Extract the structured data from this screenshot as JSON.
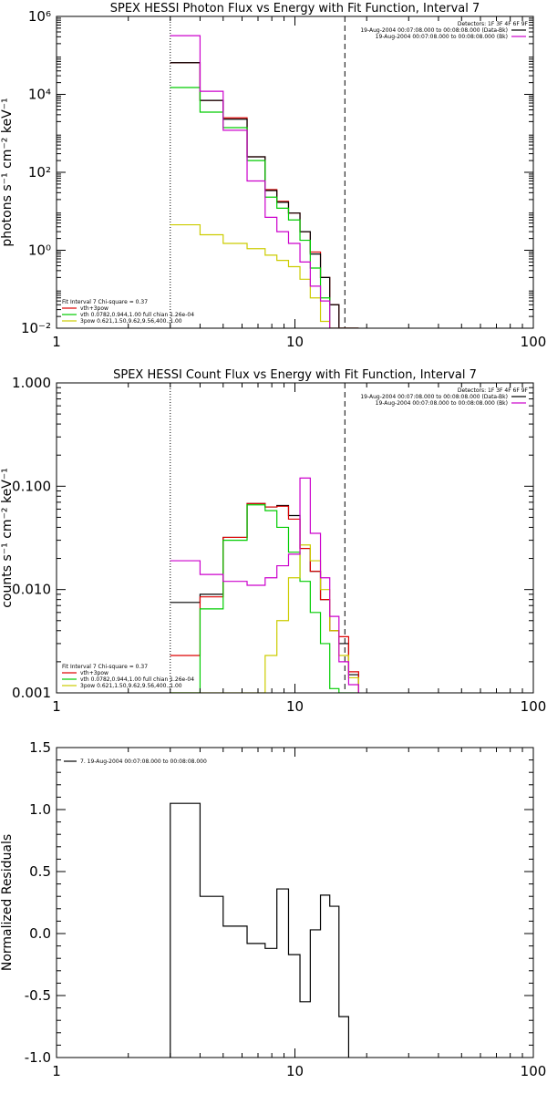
{
  "chart_data": [
    {
      "type": "line",
      "step": true,
      "title": "SPEX HESSI Photon Flux vs Energy with Fit Function, Interval 7",
      "ylabel": "photons s⁻¹ cm⁻² keV⁻¹",
      "xlabel": "",
      "xscale": "log",
      "yscale": "log",
      "xlim": [
        1,
        100
      ],
      "ylim": [
        0.01,
        1000000
      ],
      "x_ticks": [
        {
          "value": 1,
          "label": "1"
        },
        {
          "value": 10,
          "label": "10"
        },
        {
          "value": 100,
          "label": "100"
        }
      ],
      "y_ticks": [
        {
          "value": 0.01,
          "label": "10⁻²"
        },
        {
          "value": 1,
          "label": "10⁰"
        },
        {
          "value": 100,
          "label": "10²"
        },
        {
          "value": 10000,
          "label": "10⁴"
        },
        {
          "value": 1000000,
          "label": "10⁶"
        }
      ],
      "vlines": [
        {
          "x": 3.0,
          "style": "dotted"
        },
        {
          "x": 16.2,
          "style": "dashed"
        }
      ],
      "legend_top": [
        {
          "text": "Detectors: 1F 3F 4F 6F 9F",
          "color": ""
        },
        {
          "text": "19-Aug-2004 00:07:08.000 to 00:08:08.000 (Data-Bk)",
          "color": "#000000"
        },
        {
          "text": "19-Aug-2004 00:07:08.000 to 00:08:08.000 (Bk)",
          "color": "#cc00cc"
        }
      ],
      "legend_bottom": [
        {
          "text": "Fit Interval  7   Chi-square = 0.37",
          "color": ""
        },
        {
          "text": "vth+3pow",
          "color": "#dd0000"
        },
        {
          "text": "vth 0.0782,0.944,1.00  full chian 1.26e-04",
          "color": "#00cc00"
        },
        {
          "text": "3pow 0.621,1.50,9.62,9.56,400.,1.00",
          "color": "#cccc00"
        }
      ],
      "bin_edges": [
        3.0,
        4.0,
        5.0,
        6.3,
        7.5,
        8.4,
        9.4,
        10.5,
        11.6,
        12.8,
        14.0,
        15.3,
        16.8,
        18.5
      ],
      "series": [
        {
          "name": "vth+3pow",
          "color": "#dd0000",
          "values": [
            65000,
            7000,
            2500,
            250,
            36,
            18,
            9,
            3.0,
            0.9,
            0.2,
            0.04,
            0.009,
            0.008
          ]
        },
        {
          "name": "Data-Bk",
          "color": "#000000",
          "values": [
            65000,
            7000,
            2300,
            250,
            34,
            17,
            9,
            3.0,
            0.8,
            0.2,
            0.04,
            0.0075,
            0.008
          ]
        },
        {
          "name": "vth 0.0782,0.944,1.00",
          "color": "#00cc00",
          "values": [
            15000,
            3500,
            1400,
            200,
            23,
            12,
            6,
            1.8,
            0.35,
            0.06,
            0.01,
            0.005,
            0.004
          ]
        },
        {
          "name": "3pow 0.621,1.50,9.62,9.56,400.,1.00",
          "color": "#cccc00",
          "values": [
            4.5,
            2.5,
            1.5,
            1.1,
            0.75,
            0.55,
            0.38,
            0.18,
            0.06,
            0.015,
            0.006,
            0.006,
            0.006
          ]
        },
        {
          "name": "Bk",
          "color": "#cc00cc",
          "values": [
            320000,
            12000,
            1200,
            60,
            7,
            3,
            1.5,
            0.5,
            0.12,
            0.05,
            0.006,
            0.005,
            0.004
          ]
        }
      ]
    },
    {
      "type": "line",
      "step": true,
      "title": "SPEX HESSI Count Flux vs Energy with Fit Function, Interval 7",
      "ylabel": "counts s⁻¹ cm⁻² keV⁻¹",
      "xlabel": "",
      "xscale": "log",
      "yscale": "log",
      "xlim": [
        1,
        100
      ],
      "ylim": [
        0.001,
        1.0
      ],
      "x_ticks": [
        {
          "value": 1,
          "label": "1"
        },
        {
          "value": 10,
          "label": "10"
        },
        {
          "value": 100,
          "label": "100"
        }
      ],
      "y_ticks": [
        {
          "value": 0.001,
          "label": "0.001"
        },
        {
          "value": 0.01,
          "label": "0.010"
        },
        {
          "value": 0.1,
          "label": "0.100"
        },
        {
          "value": 1.0,
          "label": "1.000"
        }
      ],
      "vlines": [
        {
          "x": 3.0,
          "style": "dotted"
        },
        {
          "x": 16.2,
          "style": "dashed"
        }
      ],
      "legend_top": [
        {
          "text": "Detectors: 1F 3F 4F 6F 9F",
          "color": ""
        },
        {
          "text": "19-Aug-2004 00:07:08.000 to 00:08:08.000 (Data-Bk)",
          "color": "#000000"
        },
        {
          "text": "19-Aug-2004 00:07:08.000 to 00:08:08.000 (Bk)",
          "color": "#cc00cc"
        }
      ],
      "legend_bottom": [
        {
          "text": "Fit Interval  7   Chi-square = 0.37",
          "color": ""
        },
        {
          "text": "vth+3pow",
          "color": "#dd0000"
        },
        {
          "text": "vth 0.0782,0.944,1.00  full chian 1.26e-04",
          "color": "#00cc00"
        },
        {
          "text": "3pow 0.621,1.50,9.62,9.56,400.,1.00",
          "color": "#cccc00"
        }
      ],
      "bin_edges": [
        3.0,
        4.0,
        5.0,
        6.3,
        7.5,
        8.4,
        9.4,
        10.5,
        11.6,
        12.8,
        14.0,
        15.3,
        16.8,
        18.5
      ],
      "series": [
        {
          "name": "Data-Bk",
          "color": "#000000",
          "values": [
            0.0075,
            0.009,
            0.032,
            0.068,
            0.063,
            0.065,
            0.052,
            0.025,
            0.015,
            0.008,
            0.004,
            0.003,
            0.0015
          ]
        },
        {
          "name": "vth+3pow",
          "color": "#dd0000",
          "values": [
            0.0023,
            0.0085,
            0.032,
            0.068,
            0.063,
            0.064,
            0.048,
            0.025,
            0.015,
            0.008,
            0.004,
            0.0035,
            0.0016
          ]
        },
        {
          "name": "vth 0.0782,0.944,1.00",
          "color": "#00cc00",
          "values": [
            0.001,
            0.0065,
            0.03,
            0.066,
            0.058,
            0.04,
            0.023,
            0.012,
            0.006,
            0.003,
            0.0011,
            0.0009,
            0.0009
          ]
        },
        {
          "name": "3pow 0.621,1.50,9.62,9.56,400.,1.00",
          "color": "#cccc00",
          "values": [
            0.0009,
            0.0008,
            0.0008,
            0.001,
            0.0023,
            0.005,
            0.013,
            0.027,
            0.019,
            0.01,
            0.004,
            0.0023,
            0.0014
          ]
        },
        {
          "name": "Bk",
          "color": "#cc00cc",
          "values": [
            0.019,
            0.014,
            0.012,
            0.011,
            0.013,
            0.017,
            0.022,
            0.12,
            0.035,
            0.013,
            0.0055,
            0.002,
            0.0012
          ]
        }
      ]
    },
    {
      "type": "line",
      "step": true,
      "title": "",
      "ylabel": "Normalized Residuals",
      "xlabel": "",
      "xscale": "log",
      "yscale": "linear",
      "xlim": [
        1,
        100
      ],
      "ylim": [
        -1.0,
        1.5
      ],
      "x_ticks": [
        {
          "value": 1,
          "label": "1"
        },
        {
          "value": 10,
          "label": "10"
        },
        {
          "value": 100,
          "label": "100"
        }
      ],
      "y_ticks": [
        {
          "value": -1.0,
          "label": "-1.0"
        },
        {
          "value": -0.5,
          "label": "-0.5"
        },
        {
          "value": 0.0,
          "label": "0.0"
        },
        {
          "value": 0.5,
          "label": "0.5"
        },
        {
          "value": 1.0,
          "label": "1.0"
        },
        {
          "value": 1.5,
          "label": "1.5"
        }
      ],
      "vlines": [],
      "legend_top": [],
      "legend_bottom": [],
      "legend_left": [
        {
          "text": "7. 19-Aug-2004 00:07:08.000 to 00:08:08.000",
          "color": "#000000"
        }
      ],
      "bin_edges": [
        3.0,
        4.0,
        5.0,
        6.3,
        7.5,
        8.4,
        9.4,
        10.5,
        11.6,
        12.8,
        14.0,
        15.3,
        16.8
      ],
      "series": [
        {
          "name": "7. 19-Aug-2004 00:07:08.000 to 00:08:08.000",
          "color": "#000000",
          "values": [
            1.05,
            0.3,
            0.06,
            -0.08,
            -0.12,
            0.36,
            -0.17,
            -0.55,
            0.03,
            0.31,
            0.22,
            -0.67
          ],
          "drop_to_bottom": true
        }
      ]
    }
  ]
}
